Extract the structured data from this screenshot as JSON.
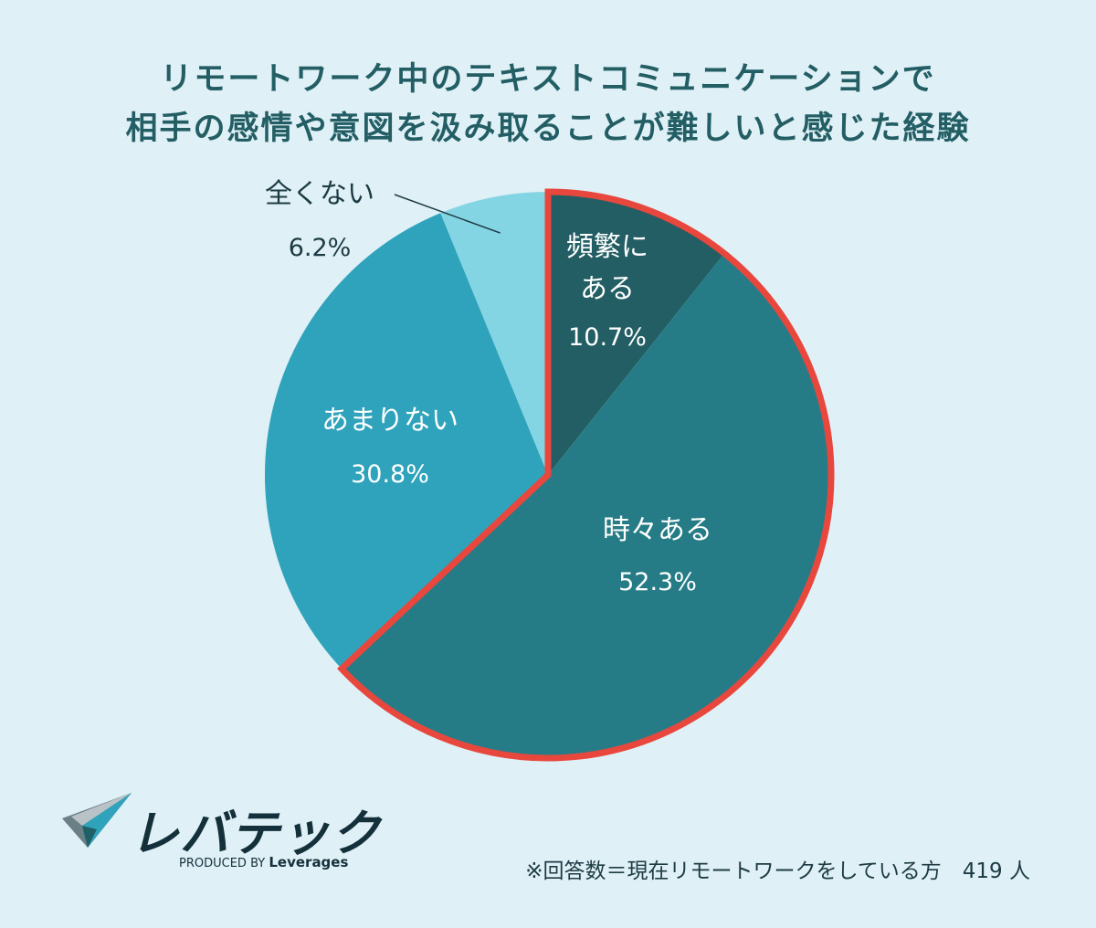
{
  "title_line1": "リモートワーク中のテキストコミュニケーションで",
  "title_line2": "相手の感情や意図を汲み取ることが難しいと感じた経験",
  "chart_data": {
    "type": "pie",
    "title": "リモートワーク中のテキストコミュニケーションで相手の感情や意図を汲み取ることが難しいと感じた経験",
    "slices": [
      {
        "label_lines": [
          "頻繁に",
          "ある"
        ],
        "value": 10.7,
        "display": "10.7%",
        "color": "#225e64"
      },
      {
        "label_lines": [
          "時々ある"
        ],
        "value": 52.3,
        "display": "52.3%",
        "color": "#267c86"
      },
      {
        "label_lines": [
          "あまりない"
        ],
        "value": 30.8,
        "display": "30.8%",
        "color": "#2fa3bb"
      },
      {
        "label_lines": [
          "全くない"
        ],
        "value": 6.2,
        "display": "6.2%",
        "color": "#84d5e4"
      }
    ],
    "highlight": {
      "slices": [
        0,
        1
      ],
      "color": "#e8473d"
    },
    "start": "12 o'clock",
    "direction": "clockwise"
  },
  "footnote": "※回答数＝現在リモートワークをしている方　419 人",
  "logo": {
    "name": "レバテック",
    "produced_by": "PRODUCED BY",
    "company": "Leverages"
  }
}
